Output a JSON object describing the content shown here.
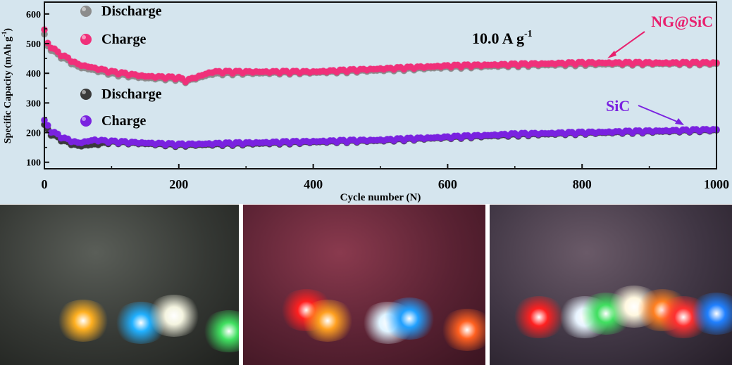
{
  "chart_data": {
    "type": "scatter",
    "title": "",
    "annotation_rate": "10.0 A g",
    "annotation_rate_sup": "-1",
    "xlabel": "Cycle number (N)",
    "ylabel": "Specific Capacity (mAh g",
    "ylabel_sup": "-1",
    "ylabel_close": ")",
    "xlim": [
      0,
      1000
    ],
    "ylim": [
      78,
      640
    ],
    "xticks": [
      0,
      200,
      400,
      600,
      800,
      1000
    ],
    "yticks": [
      100,
      200,
      300,
      400,
      500,
      600
    ],
    "grid": false,
    "legend_groups": [
      {
        "position": "top-left",
        "entries": [
          {
            "label": "Discharge",
            "color": "#8c8c8c"
          },
          {
            "label": "Charge",
            "color": "#f0307a"
          }
        ]
      },
      {
        "position": "middle-left",
        "entries": [
          {
            "label": "Discharge",
            "color": "#3a3a3a"
          },
          {
            "label": "Charge",
            "color": "#7a22e0"
          }
        ]
      }
    ],
    "labels": [
      {
        "text": "NG@SiC",
        "color": "#e8206e"
      },
      {
        "text": "SiC",
        "color": "#7a22e0"
      }
    ],
    "series": [
      {
        "name": "NG@SiC Discharge",
        "color": "#8c8c8c",
        "x": [
          0,
          5,
          20,
          50,
          100,
          150,
          200,
          210,
          250,
          300,
          400,
          500,
          600,
          700,
          800,
          900,
          1000
        ],
        "y": [
          530,
          490,
          462,
          422,
          398,
          384,
          380,
          372,
          398,
          400,
          402,
          410,
          420,
          426,
          430,
          432,
          432
        ]
      },
      {
        "name": "NG@SiC Charge",
        "color": "#f0307a",
        "x": [
          0,
          5,
          20,
          50,
          100,
          150,
          200,
          210,
          250,
          300,
          400,
          500,
          600,
          700,
          800,
          900,
          1000
        ],
        "y": [
          545,
          500,
          470,
          430,
          405,
          390,
          385,
          375,
          405,
          405,
          405,
          415,
          425,
          430,
          435,
          435,
          435
        ]
      },
      {
        "name": "SiC Discharge",
        "color": "#3a3a3a",
        "x": [
          0,
          10,
          30,
          50,
          75,
          100,
          200,
          300,
          400,
          500,
          600,
          700,
          800,
          900,
          1000
        ],
        "y": [
          225,
          195,
          170,
          155,
          160,
          168,
          157,
          162,
          168,
          173,
          183,
          192,
          198,
          203,
          208
        ]
      },
      {
        "name": "SiC Charge",
        "color": "#7a22e0",
        "x": [
          0,
          10,
          30,
          50,
          75,
          100,
          200,
          300,
          400,
          500,
          600,
          700,
          800,
          900,
          1000
        ],
        "y": [
          240,
          205,
          180,
          165,
          175,
          170,
          160,
          165,
          170,
          175,
          185,
          195,
          200,
          205,
          210
        ]
      }
    ]
  }
}
